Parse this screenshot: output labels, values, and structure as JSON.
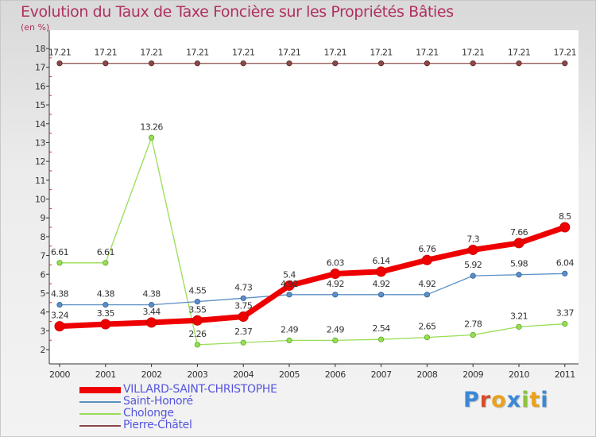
{
  "title": "Evolution du Taux de Taxe Foncière sur les Propriétés Bâties",
  "subtitle": "(en %)",
  "logo_text": "Proxiti",
  "logo_colors": [
    "#3a88d8",
    "#d94a2a",
    "#e8a21c",
    "#3a88d8",
    "#8cc43c",
    "#e8a21c",
    "#3a88d8"
  ],
  "chart_data": {
    "type": "line",
    "title": "Evolution du Taux de Taxe Foncière sur les Propriétés Bâties",
    "ylabel": "(en %)",
    "xlabel": "",
    "ylim": [
      2,
      18
    ],
    "yticks": [
      "2",
      "3",
      "4",
      "5",
      "6",
      "7",
      "8",
      "9",
      "10",
      "11",
      "12",
      "13",
      "14",
      "15",
      "16",
      "17",
      "18"
    ],
    "categories": [
      "2000",
      "2001",
      "2002",
      "2003",
      "2004",
      "2005",
      "2006",
      "2007",
      "2008",
      "2009",
      "2010",
      "2011"
    ],
    "grid": false,
    "legend": "bottom-left",
    "series": [
      {
        "name": "VILLARD-SAINT-CHRISTOPHE",
        "color": "#ee0000",
        "values": [
          3.24,
          3.35,
          3.44,
          3.55,
          3.75,
          5.4,
          6.03,
          6.14,
          6.76,
          7.3,
          7.66,
          8.5
        ],
        "labels": [
          "3.24",
          "3.35",
          "3.44",
          "3.55",
          "3.75",
          "5.4",
          "6.03",
          "6.14",
          "6.76",
          "7.3",
          "7.66",
          "8.5"
        ]
      },
      {
        "name": "Saint-Honoré",
        "color": "#5c8fc4",
        "values": [
          4.38,
          4.38,
          4.38,
          4.55,
          4.73,
          4.92,
          4.92,
          4.92,
          4.92,
          5.92,
          5.98,
          6.04
        ],
        "labels": [
          "4.38",
          "4.38",
          "4.38",
          "4.55",
          "4.73",
          "4.92",
          "4.92",
          "4.92",
          "4.92",
          "5.92",
          "5.98",
          "6.04"
        ]
      },
      {
        "name": "Cholonge",
        "color": "#99dd55",
        "values": [
          6.61,
          6.61,
          13.26,
          2.26,
          2.37,
          2.49,
          2.49,
          2.54,
          2.65,
          2.78,
          3.21,
          3.37
        ],
        "labels": [
          "6.61",
          "6.61",
          "13.26",
          "2.26",
          "2.37",
          "2.49",
          "2.49",
          "2.54",
          "2.65",
          "2.78",
          "3.21",
          "3.37"
        ]
      },
      {
        "name": "Pierre-Châtel",
        "color": "#8b4848",
        "values": [
          17.21,
          17.21,
          17.21,
          17.21,
          17.21,
          17.21,
          17.21,
          17.21,
          17.21,
          17.21,
          17.21,
          17.21
        ],
        "labels": [
          "17.21",
          "17.21",
          "17.21",
          "17.21",
          "17.21",
          "17.21",
          "17.21",
          "17.21",
          "17.21",
          "17.21",
          "17.21",
          "17.21"
        ]
      }
    ]
  }
}
